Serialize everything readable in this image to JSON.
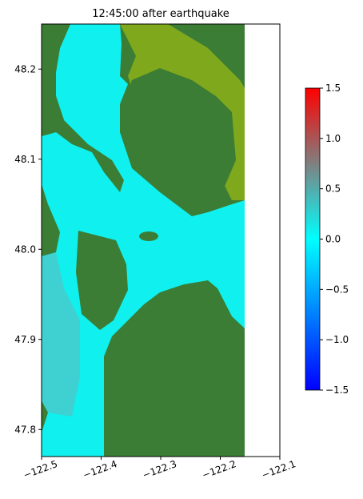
{
  "chart_data": {
    "type": "image",
    "title": "12:45:00 after earthquake",
    "xlim": [
      -122.5,
      -122.1
    ],
    "xticks": [
      {
        "value": -122.5,
        "label": "−122.5"
      },
      {
        "value": -122.4,
        "label": "−122.4"
      },
      {
        "value": -122.3,
        "label": "−122.3"
      },
      {
        "value": -122.2,
        "label": "−122.2"
      },
      {
        "value": -122.1,
        "label": "−122.1"
      }
    ],
    "ylim": [
      47.77,
      48.25
    ],
    "yticks": [
      47.8,
      47.9,
      {
        "value": 48.0,
        "label": "48.0"
      },
      48.1,
      48.2
    ],
    "colorbar": {
      "clim": [
        -1.5,
        1.5
      ],
      "ticks": [
        {
          "value": -1.5,
          "label": "−1.5"
        },
        {
          "value": -1.0,
          "label": "−1.0"
        },
        {
          "value": -0.5,
          "label": "−0.5"
        },
        {
          "value": 0.0,
          "label": "0.0"
        },
        {
          "value": 0.5,
          "label": "0.5"
        },
        {
          "value": 1.0,
          "label": "1.0"
        },
        {
          "value": 1.5,
          "label": "1.5"
        }
      ],
      "colormap": [
        {
          "value": -1.5,
          "color": "#0000ff"
        },
        {
          "value": 0.0,
          "color": "#00ffff"
        },
        {
          "value": 0.75,
          "color": "#808080"
        },
        {
          "value": 1.5,
          "color": "#ff0000"
        }
      ]
    }
  }
}
